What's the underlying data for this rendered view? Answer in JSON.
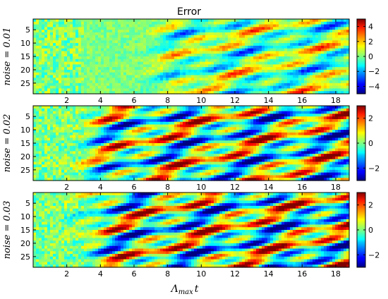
{
  "chart_data": [
    {
      "type": "heatmap",
      "title": "Error",
      "ylabel": "noise = 0.01",
      "xlabel": "",
      "xlim": [
        0,
        18.8
      ],
      "ylim": [
        29,
        1
      ],
      "x_ticks": [
        "2",
        "4",
        "6",
        "8",
        "10",
        "12",
        "14",
        "16",
        "18"
      ],
      "y_ticks": [
        "5",
        "10",
        "15",
        "20",
        "25"
      ],
      "colorbar": {
        "range": [
          -5,
          5
        ],
        "ticks": [
          "4",
          "2",
          "0",
          "−2",
          "−4"
        ],
        "colormap": "jet"
      }
    },
    {
      "type": "heatmap",
      "title": "",
      "ylabel": "noise = 0.02",
      "xlabel": "",
      "xlim": [
        0,
        18.8
      ],
      "ylim": [
        29,
        1
      ],
      "x_ticks": [
        "2",
        "4",
        "6",
        "8",
        "10",
        "12",
        "14",
        "16",
        "18"
      ],
      "y_ticks": [
        "5",
        "10",
        "15",
        "20",
        "25"
      ],
      "colorbar": {
        "range": [
          -3,
          3
        ],
        "ticks": [
          "2",
          "0",
          "−2"
        ],
        "colormap": "jet"
      }
    },
    {
      "type": "heatmap",
      "title": "",
      "ylabel": "noise = 0.03",
      "xlabel": "Λmax t",
      "xlim": [
        0,
        18.8
      ],
      "ylim": [
        29,
        1
      ],
      "x_ticks": [
        "2",
        "4",
        "6",
        "8",
        "10",
        "12",
        "14",
        "16",
        "18"
      ],
      "y_ticks": [
        "5",
        "10",
        "15",
        "20",
        "25"
      ],
      "colorbar": {
        "range": [
          -3,
          3
        ],
        "ticks": [
          "2",
          "0",
          "−2"
        ],
        "colormap": "jet"
      }
    }
  ],
  "figure": {
    "title": "Error",
    "xlabel_main": "Λ",
    "xlabel_sub": "max",
    "xlabel_tail": "t"
  }
}
